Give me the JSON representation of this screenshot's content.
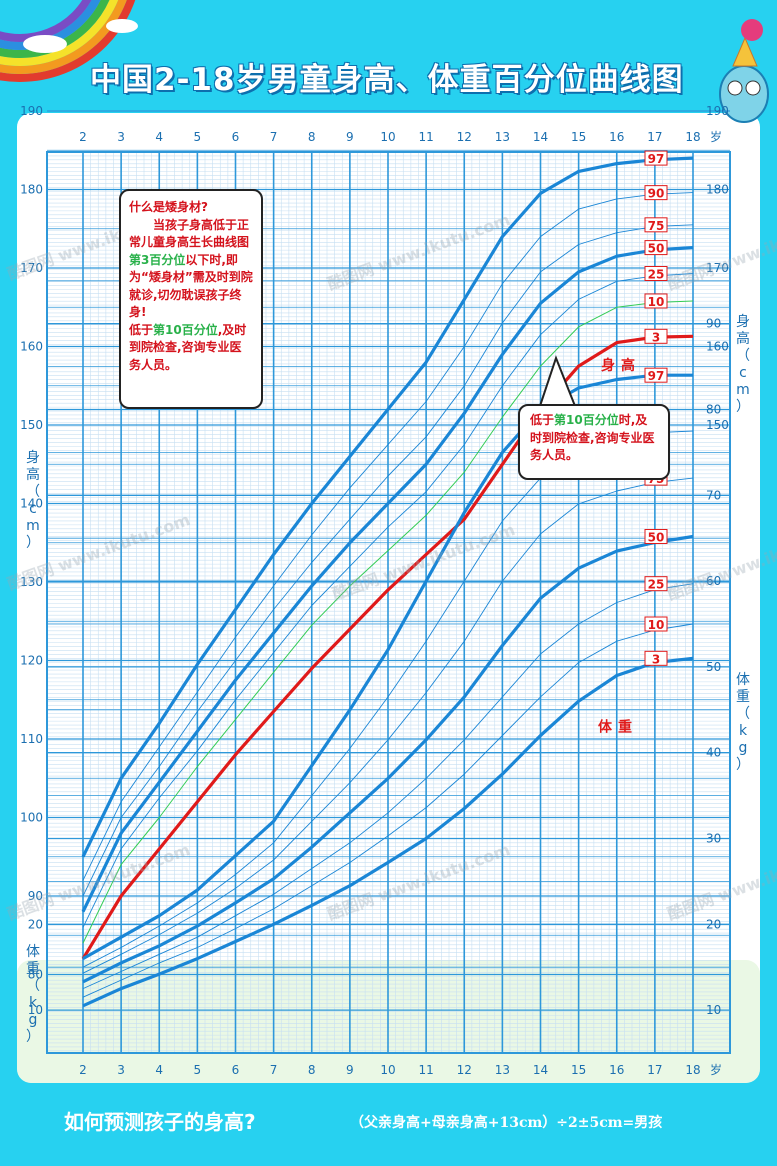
{
  "title": "中国2-18岁男童身高、体重百分位曲线图",
  "footer": {
    "question": "如何预测孩子的身高?",
    "formula": "（父亲身高+母亲身高+13cm）÷2±5cm=男孩"
  },
  "info_box": {
    "heading": "什么是矮身材?",
    "line1": "当孩子身高低于正常儿童身高生长曲线图",
    "line1_highlight": "第3百分位",
    "line1_tail": "以下时,即为“矮身材”需及时到院就诊,切勿耽误孩子终身!",
    "line2_head": "低于",
    "line2_highlight": "第10百分位",
    "line2_tail": ",及时到院检查,咨询专业医务人员。"
  },
  "callout": {
    "head": "低于",
    "highlight": "第10百分位",
    "tail": "时,及时到院检查,咨询专业医务人员。"
  },
  "watermark": "酷图网 www.ikutu.com",
  "colors": {
    "background": "#27d1f0",
    "grid_minor": "#c7dff2",
    "grid_major": "#2e98da",
    "curve": "#1a86d6",
    "red_curve": "#e01a1a",
    "green_curve": "#33cc55",
    "label_red": "#e01a1a"
  },
  "chart_data": [
    {
      "type": "line",
      "name": "身高",
      "ylabel": "身高（cm）",
      "xlabel": "岁",
      "x_ticks": [
        2,
        3,
        4,
        5,
        6,
        7,
        8,
        9,
        10,
        11,
        12,
        13,
        14,
        15,
        16,
        17,
        18
      ],
      "ylim": [
        80,
        190
      ],
      "y_ticks": [
        80,
        90,
        100,
        110,
        120,
        130,
        140,
        150,
        160,
        170,
        180,
        190
      ],
      "x": [
        2,
        3,
        4,
        5,
        6,
        7,
        8,
        9,
        10,
        11,
        12,
        13,
        14,
        15,
        16,
        17,
        18
      ],
      "series": [
        {
          "name": "97",
          "values": [
            95,
            105,
            112,
            119.5,
            126.5,
            133.5,
            140,
            146,
            152,
            158,
            166,
            174,
            179.5,
            182.3,
            183.3,
            183.8,
            184
          ]
        },
        {
          "name": "90",
          "values": [
            92,
            102,
            109,
            116,
            123,
            129.5,
            136,
            142,
            147.5,
            153,
            160,
            168,
            174,
            177.5,
            178.8,
            179.4,
            179.6
          ]
        },
        {
          "name": "75",
          "values": [
            90,
            100,
            106.5,
            113.5,
            120,
            126.5,
            132.5,
            138,
            143.5,
            148.5,
            155,
            163,
            169.5,
            173,
            174.5,
            175.3,
            175.5
          ]
        },
        {
          "name": "50",
          "values": [
            88,
            98,
            104.5,
            111,
            117.5,
            123.5,
            129.5,
            135,
            140,
            145,
            151.5,
            159,
            165.5,
            169.5,
            171.5,
            172.3,
            172.6
          ]
        },
        {
          "name": "25",
          "values": [
            86,
            96,
            102.5,
            108.5,
            115,
            121,
            127,
            132,
            137,
            141.5,
            147.5,
            155,
            161.5,
            166,
            168.3,
            169,
            169.3
          ]
        },
        {
          "name": "10",
          "values": [
            84,
            94,
            100,
            106.5,
            112.5,
            118.5,
            124.5,
            129.5,
            134,
            138.5,
            144,
            151,
            157.5,
            162.5,
            165,
            165.6,
            165.8
          ]
        },
        {
          "name": "3",
          "values": [
            82,
            90,
            96,
            102,
            108,
            113.5,
            119,
            124,
            129,
            133.5,
            138,
            145,
            152,
            157.5,
            160.5,
            161.2,
            161.3
          ]
        }
      ],
      "annotation": "身高"
    },
    {
      "type": "line",
      "name": "体重",
      "ylabel": "体重（kg）",
      "xlabel": "岁",
      "x_ticks": [
        2,
        3,
        4,
        5,
        6,
        7,
        8,
        9,
        10,
        11,
        12,
        13,
        14,
        15,
        16,
        17,
        18
      ],
      "ylim": [
        5,
        95
      ],
      "y_ticks": [
        10,
        20,
        30,
        40,
        50,
        60,
        70,
        80,
        90
      ],
      "x": [
        2,
        3,
        4,
        5,
        6,
        7,
        8,
        9,
        10,
        11,
        12,
        13,
        14,
        15,
        16,
        17,
        18
      ],
      "series": [
        {
          "name": "97",
          "values": [
            16,
            18.5,
            21,
            24,
            28,
            32,
            38.5,
            45,
            52,
            60,
            68,
            75,
            80,
            82.5,
            83.5,
            84,
            84
          ]
        },
        {
          "name": "90",
          "values": [
            15,
            17.3,
            19.8,
            22.5,
            25.8,
            29.5,
            35,
            40.5,
            46.5,
            53,
            60,
            67,
            72,
            75,
            76.5,
            77.3,
            77.5
          ]
        },
        {
          "name": "75",
          "values": [
            14.3,
            16.5,
            18.8,
            21.3,
            24.2,
            27.5,
            32,
            36.5,
            41.5,
            47,
            53,
            60,
            65.5,
            69,
            70.5,
            71.5,
            72
          ]
        },
        {
          "name": "50",
          "values": [
            13.3,
            15.5,
            17.5,
            19.8,
            22.5,
            25.3,
            29,
            33,
            37,
            41.5,
            46.5,
            52.5,
            58,
            61.5,
            63.5,
            64.5,
            65.2
          ]
        },
        {
          "name": "25",
          "values": [
            12.5,
            14.5,
            16.5,
            18.5,
            21,
            23.5,
            26.5,
            29.5,
            33,
            37,
            41.5,
            46.5,
            51.5,
            55,
            57.5,
            59,
            59.7
          ]
        },
        {
          "name": "10",
          "values": [
            11.5,
            13.5,
            15.5,
            17.3,
            19.5,
            21.8,
            24.5,
            27.2,
            30.3,
            33.6,
            37.5,
            42,
            46.5,
            50.5,
            53,
            54.3,
            55
          ]
        },
        {
          "name": "3",
          "values": [
            10.5,
            12.5,
            14.2,
            16,
            18,
            20,
            22.2,
            24.5,
            27.2,
            30,
            33.5,
            37.5,
            42,
            46,
            49,
            50.5,
            51
          ]
        }
      ],
      "annotation": "体重"
    }
  ]
}
